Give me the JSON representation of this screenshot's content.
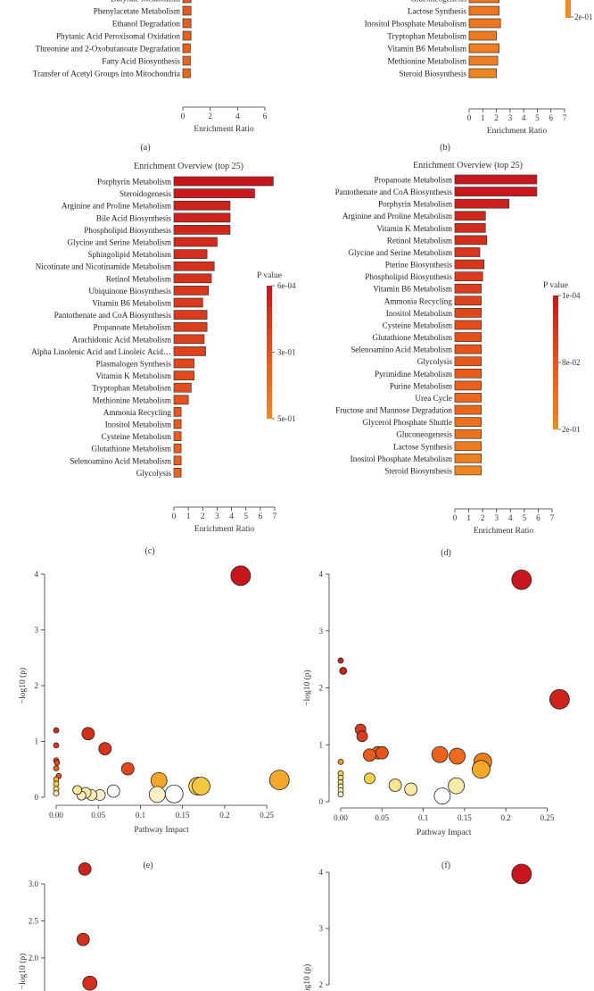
{
  "colors": {
    "high": "#c00000",
    "mid": "#e8531b",
    "low": "#f08a21",
    "bar_stroke": "#333333"
  },
  "panel_labels": [
    "(a)",
    "(b)",
    "(c)",
    "(d)",
    "(e)",
    "(f)"
  ],
  "chart_data": [
    {
      "id": "a",
      "type": "bar",
      "orientation": "horizontal",
      "title": "",
      "xlabel": "Enrichment Ratio",
      "xlim": [
        0,
        6
      ],
      "xticks": [
        0,
        2,
        4,
        6
      ],
      "categories": [
        "Butyrate Metabolism",
        "Phenylacetate Metabolism",
        "Ethanol Degradation",
        "Phytanic Acid Peroxisomal Oxidation",
        "Threonine and 2-Oxobutanoate Degradation",
        "Fatty Acid Biosynthesis",
        "Transfer of Acetyl Groups into Mitochondria"
      ],
      "values": [
        0.6,
        0.6,
        0.6,
        0.6,
        0.55,
        0.55,
        0.55
      ],
      "color_levels": [
        0.55,
        0.55,
        0.58,
        0.6,
        0.62,
        0.65,
        0.68
      ]
    },
    {
      "id": "b",
      "type": "bar",
      "orientation": "horizontal",
      "title": "",
      "xlabel": "Enrichment Ratio",
      "xlim": [
        0,
        7
      ],
      "xticks": [
        0,
        1,
        2,
        3,
        4,
        5,
        6,
        7
      ],
      "categories": [
        "Gluconeogenesis",
        "Lactose Synthesis",
        "Inositol Phosphate Metabolism",
        "Tryptophan Metabolism",
        "Vitamin B6 Metabolism",
        "Methionine Metabolism",
        "Steroid Biosynthesis"
      ],
      "values": [
        2.2,
        2.2,
        2.3,
        2.0,
        2.2,
        2.1,
        2.0
      ],
      "color_levels": [
        0.8,
        0.82,
        0.84,
        0.86,
        0.88,
        0.9,
        0.95
      ],
      "legend_tick": "2e-01"
    },
    {
      "id": "c",
      "type": "bar",
      "orientation": "horizontal",
      "title": "Enrichment Overview (top 25)",
      "xlabel": "Enrichment Ratio",
      "xlim": [
        0,
        7
      ],
      "xticks": [
        0,
        1,
        2,
        3,
        4,
        5,
        6,
        7
      ],
      "categories": [
        "Porphyrin Metabolism",
        "Steroidogenesis",
        "Arginine and Proline Metabolism",
        "Bile Acid Biosynthesis",
        "Phospholipid Biosynthesis",
        "Glycine and Serine Metabolism",
        "Sphingolipid Metabolism",
        "Nicotinate and Nicotinamide Metabolism",
        "Retinol Metabolism",
        "Ubiquinone Biosynthesis",
        "Vitamin B6 Metabolism",
        "Pantothenate and CoA Biosynthesis",
        "Propanoate Metabolism",
        "Arachidonic Acid Metabolism",
        "Alpha Linolenic Acid and Linoleic Acid…",
        "Plasmalogen Synthesis",
        "Vitamin K Metabolism",
        "Tryptophan Metabolism",
        "Methionine Metabolism",
        "Ammonia Recycling",
        "Inositol Metabolism",
        "Cysteine Metabolism",
        "Glutathione Metabolism",
        "Selenoamino Acid Metabolism",
        "Glycolysis"
      ],
      "values": [
        6.9,
        5.6,
        3.9,
        3.9,
        3.9,
        3.0,
        2.3,
        2.8,
        2.6,
        2.4,
        2.0,
        2.3,
        2.3,
        2.1,
        2.2,
        1.4,
        1.4,
        1.2,
        1.0,
        0.5,
        0.5,
        0.5,
        0.5,
        0.5,
        0.5
      ],
      "color_levels": [
        0.0,
        0.03,
        0.1,
        0.11,
        0.12,
        0.16,
        0.2,
        0.22,
        0.24,
        0.26,
        0.28,
        0.3,
        0.31,
        0.33,
        0.35,
        0.4,
        0.42,
        0.45,
        0.48,
        0.55,
        0.58,
        0.6,
        0.62,
        0.64,
        0.66
      ],
      "legend": {
        "title": "P value",
        "ticks": [
          "6e-04",
          "3e-01",
          "5e-01"
        ]
      }
    },
    {
      "id": "d",
      "type": "bar",
      "orientation": "horizontal",
      "title": "Enrichment Overview (top 25)",
      "xlabel": "Enrichment Ratio",
      "xlim": [
        0,
        7
      ],
      "xticks": [
        0,
        1,
        2,
        3,
        4,
        5,
        6,
        7
      ],
      "categories": [
        "Propanoate Metabolism",
        "Pantothenate and CoA Biosynthesis",
        "Porphyrin Metabolism",
        "Arginine and Proline Metabolism",
        "Vitamin K Metabolism",
        "Retinol Metabolism",
        "Glycine and Serine Metabolism",
        "Pterine Biosynthesis",
        "Phospholipid Biosynthesis",
        "Vitamin B6 Metabolism",
        "Ammonia Recycling",
        "Inositol Metabolism",
        "Cysteine Metabolism",
        "Glutathione Metabolism",
        "Selenoamino Acid Metabolism",
        "Glycolysis",
        "Pyrimidine Metabolism",
        "Purine Metabolism",
        "Urea Cycle",
        "Fructose and Mannose Degradation",
        "Glycerol Phosphate Shuttle",
        "Gluconeogenesis",
        "Lactose Synthesis",
        "Inositol Phosphate Metabolism",
        "Steroid Biosynthesis"
      ],
      "values": [
        5.9,
        5.9,
        3.9,
        2.2,
        2.2,
        2.3,
        1.8,
        2.1,
        2.0,
        1.9,
        1.9,
        1.9,
        1.9,
        1.9,
        1.9,
        1.9,
        1.9,
        1.9,
        1.9,
        1.9,
        1.9,
        1.9,
        1.9,
        1.9,
        1.9
      ],
      "color_levels": [
        0.0,
        0.02,
        0.08,
        0.15,
        0.17,
        0.2,
        0.25,
        0.27,
        0.3,
        0.33,
        0.36,
        0.4,
        0.43,
        0.47,
        0.5,
        0.55,
        0.58,
        0.62,
        0.66,
        0.7,
        0.75,
        0.8,
        0.85,
        0.9,
        0.95
      ],
      "legend": {
        "title": "P value",
        "ticks": [
          "1e-04",
          "8e-02",
          "2e-01"
        ]
      }
    },
    {
      "id": "e",
      "type": "scatter",
      "xlabel": "Pathway Impact",
      "ylabel": "−log10 (p)",
      "xlim": [
        0,
        0.27
      ],
      "ylim": [
        0,
        4
      ],
      "xticks": [
        0,
        0.05,
        0.1,
        0.15,
        0.2,
        0.25
      ],
      "yticks": [
        0,
        1,
        2,
        3,
        4
      ],
      "points": [
        {
          "x": 0.219,
          "y": 3.97,
          "s": 11,
          "c": 0.0
        },
        {
          "x": 0.265,
          "y": 0.31,
          "s": 11,
          "c": 0.55
        },
        {
          "x": 0.122,
          "y": 0.3,
          "s": 9,
          "c": 0.55
        },
        {
          "x": 0.168,
          "y": 0.2,
          "s": 10,
          "c": 0.75
        },
        {
          "x": 0.172,
          "y": 0.2,
          "s": 10,
          "c": 0.7
        },
        {
          "x": 0.14,
          "y": 0.06,
          "s": 10,
          "c": 1.0
        },
        {
          "x": 0.12,
          "y": 0.05,
          "s": 9,
          "c": 0.92
        },
        {
          "x": 0.085,
          "y": 0.51,
          "s": 7,
          "c": 0.2
        },
        {
          "x": 0.058,
          "y": 0.87,
          "s": 7,
          "c": 0.12
        },
        {
          "x": 0.038,
          "y": 1.14,
          "s": 7,
          "c": 0.1
        },
        {
          "x": 0.068,
          "y": 0.11,
          "s": 7,
          "c": 1.0
        },
        {
          "x": 0.052,
          "y": 0.04,
          "s": 6,
          "c": 0.93
        },
        {
          "x": 0.042,
          "y": 0.04,
          "s": 6,
          "c": 0.9
        },
        {
          "x": 0.035,
          "y": 0.08,
          "s": 6,
          "c": 0.88
        },
        {
          "x": 0.03,
          "y": 0.03,
          "s": 5,
          "c": 0.9
        },
        {
          "x": 0.025,
          "y": 0.13,
          "s": 5,
          "c": 0.87
        },
        {
          "x": 0.0,
          "y": 1.2,
          "s": 3,
          "c": 0.1
        },
        {
          "x": 0.0,
          "y": 0.93,
          "s": 3,
          "c": 0.15
        },
        {
          "x": 0.0,
          "y": 0.66,
          "s": 3,
          "c": 0.2
        },
        {
          "x": 0.001,
          "y": 0.62,
          "s": 3,
          "c": 0.22
        },
        {
          "x": 0.0,
          "y": 0.52,
          "s": 3,
          "c": 0.3
        },
        {
          "x": 0.003,
          "y": 0.38,
          "s": 3,
          "c": 0.25
        },
        {
          "x": 0.0,
          "y": 0.32,
          "s": 3,
          "c": 0.6
        },
        {
          "x": 0.0,
          "y": 0.24,
          "s": 3,
          "c": 0.75
        },
        {
          "x": 0.0,
          "y": 0.15,
          "s": 3,
          "c": 0.8
        },
        {
          "x": 0.0,
          "y": 0.07,
          "s": 3,
          "c": 0.88
        }
      ]
    },
    {
      "id": "f",
      "type": "scatter",
      "xlabel": "Pathway Impact",
      "ylabel": "−log10 (p)",
      "xlim": [
        0,
        0.27
      ],
      "ylim": [
        0,
        4
      ],
      "xticks": [
        0,
        0.05,
        0.1,
        0.15,
        0.2,
        0.25
      ],
      "yticks": [
        0,
        1,
        2,
        3,
        4
      ],
      "points": [
        {
          "x": 0.219,
          "y": 3.9,
          "s": 11,
          "c": 0.0
        },
        {
          "x": 0.265,
          "y": 1.8,
          "s": 11,
          "c": 0.05
        },
        {
          "x": 0.0,
          "y": 2.48,
          "s": 3,
          "c": 0.05
        },
        {
          "x": 0.003,
          "y": 2.3,
          "s": 4,
          "c": 0.05
        },
        {
          "x": 0.024,
          "y": 1.27,
          "s": 6,
          "c": 0.15
        },
        {
          "x": 0.026,
          "y": 1.15,
          "s": 6,
          "c": 0.15
        },
        {
          "x": 0.02,
          "y": 0.0,
          "s": 0,
          "c": 0.0
        },
        {
          "x": 0.045,
          "y": 0.86,
          "s": 7,
          "c": 0.3
        },
        {
          "x": 0.05,
          "y": 0.86,
          "s": 7,
          "c": 0.25
        },
        {
          "x": 0.035,
          "y": 0.82,
          "s": 7,
          "c": 0.28
        },
        {
          "x": 0.12,
          "y": 0.83,
          "s": 9,
          "c": 0.3
        },
        {
          "x": 0.141,
          "y": 0.8,
          "s": 9,
          "c": 0.33
        },
        {
          "x": 0.172,
          "y": 0.7,
          "s": 10,
          "c": 0.4
        },
        {
          "x": 0.17,
          "y": 0.57,
          "s": 10,
          "c": 0.55
        },
        {
          "x": 0.035,
          "y": 0.41,
          "s": 6,
          "c": 0.75
        },
        {
          "x": 0.066,
          "y": 0.29,
          "s": 7,
          "c": 0.85
        },
        {
          "x": 0.085,
          "y": 0.22,
          "s": 7,
          "c": 0.88
        },
        {
          "x": 0.14,
          "y": 0.28,
          "s": 9,
          "c": 0.88
        },
        {
          "x": 0.123,
          "y": 0.1,
          "s": 9,
          "c": 1.0
        },
        {
          "x": 0.0,
          "y": 0.7,
          "s": 3,
          "c": 0.5
        },
        {
          "x": 0.0,
          "y": 0.5,
          "s": 3,
          "c": 0.75
        },
        {
          "x": 0.0,
          "y": 0.42,
          "s": 3,
          "c": 0.8
        },
        {
          "x": 0.0,
          "y": 0.34,
          "s": 3,
          "c": 0.84
        },
        {
          "x": 0.0,
          "y": 0.27,
          "s": 3,
          "c": 0.86
        },
        {
          "x": 0.0,
          "y": 0.2,
          "s": 3,
          "c": 0.9
        },
        {
          "x": 0.0,
          "y": 0.13,
          "s": 3,
          "c": 0.92
        }
      ]
    },
    {
      "id": "g",
      "type": "scatter",
      "xlabel": "",
      "ylabel": "−log10 (p)",
      "xlim": [
        0,
        0.27
      ],
      "ylim": [
        1.0,
        3.2
      ],
      "yticks": [
        1.5,
        2.0,
        2.5,
        3.0
      ],
      "points": [
        {
          "x": 0.034,
          "y": 3.2,
          "s": 7,
          "c": 0.05
        },
        {
          "x": 0.032,
          "y": 2.25,
          "s": 7,
          "c": 0.1
        },
        {
          "x": 0.04,
          "y": 1.66,
          "s": 8,
          "c": 0.1
        }
      ]
    },
    {
      "id": "h",
      "type": "scatter",
      "xlabel": "",
      "ylabel": "−log10 (p)",
      "xlim": [
        0,
        0.27
      ],
      "ylim": [
        0,
        4
      ],
      "yticks": [
        2,
        3,
        4
      ],
      "points": [
        {
          "x": 0.219,
          "y": 3.97,
          "s": 11,
          "c": 0.0
        }
      ]
    }
  ]
}
